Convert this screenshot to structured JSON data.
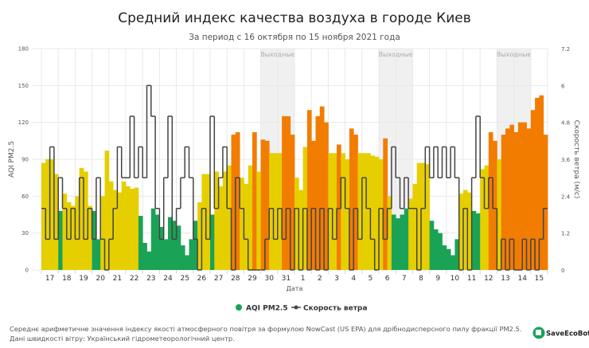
{
  "chart_data": {
    "type": "bar+line",
    "title": "Средний индекс качества воздуха в городе Киев",
    "subtitle": "За период с 16 октября по 15 ноября 2021 года",
    "xlabel": "Дата",
    "ylabel": "AQI PM2.5",
    "ylabel_right": "Скорость ветра (м/с)",
    "ylim": [
      0,
      180
    ],
    "ylim_right": [
      0,
      7.2
    ],
    "yticks": [
      "0",
      "30",
      "60",
      "90",
      "120",
      "150",
      "180"
    ],
    "yticks_right": [
      "0",
      "1.2",
      "2.4",
      "3.6",
      "4.8",
      "6",
      "7.2"
    ],
    "grid": true,
    "legend_position": "bottom",
    "x_step_hours": 6,
    "days": [
      "17",
      "18",
      "19",
      "20",
      "21",
      "22",
      "23",
      "24",
      "25",
      "26",
      "27",
      "28",
      "29",
      "30",
      "31",
      "1",
      "2",
      "3",
      "4",
      "5",
      "6",
      "7",
      "8",
      "9",
      "10",
      "11",
      "12",
      "13",
      "14",
      "15"
    ],
    "weekend_label": "Выходные",
    "weekends": [
      [
        13,
        15
      ],
      [
        20,
        22
      ],
      [
        27,
        29
      ]
    ],
    "category_colors": {
      "good": "#1aa356",
      "moderate": "#e6cf00",
      "unhealthy_sensitive": "#f27c00"
    },
    "series": [
      {
        "name": "AQI PM2.5",
        "type": "bar",
        "color": "#1aa356",
        "values": [
          87,
          90,
          90,
          78,
          48,
          62,
          55,
          52,
          60,
          83,
          80,
          52,
          48,
          25,
          60,
          97,
          72,
          65,
          63,
          72,
          68,
          66,
          67,
          44,
          22,
          15,
          50,
          45,
          35,
          25,
          43,
          40,
          36,
          20,
          12,
          25,
          40,
          55,
          78,
          78,
          45,
          80,
          68,
          80,
          85,
          110,
          112,
          75,
          70,
          85,
          112,
          80,
          106,
          105,
          95,
          95,
          95,
          125,
          125,
          110,
          75,
          65,
          100,
          130,
          105,
          125,
          133,
          120,
          95,
          95,
          102,
          95,
          90,
          115,
          110,
          95,
          95,
          95,
          93,
          92,
          90,
          107,
          60,
          45,
          42,
          45,
          50,
          58,
          70,
          87,
          87,
          86,
          40,
          33,
          30,
          20,
          17,
          12,
          25,
          62,
          65,
          63,
          48,
          46,
          82,
          85,
          112,
          105,
          90,
          110,
          115,
          118,
          112,
          120,
          120,
          115,
          130,
          140,
          142,
          110
        ]
      },
      {
        "name": "Скорость ветра",
        "type": "line",
        "color": "#444444",
        "values": [
          2,
          1,
          4,
          1,
          3,
          2,
          1,
          2,
          1,
          3,
          1,
          2,
          1,
          3,
          1,
          0,
          1,
          2,
          4,
          3,
          3,
          5,
          3,
          4,
          3,
          6,
          5,
          2,
          1,
          3,
          5,
          1,
          2,
          3,
          4,
          3,
          1,
          0,
          2,
          1,
          5,
          2,
          3,
          4,
          2,
          0,
          3,
          2,
          1,
          0,
          0,
          0,
          0,
          1,
          2,
          1,
          2,
          1,
          2,
          0,
          2,
          0,
          2,
          0,
          2,
          0,
          2,
          0,
          2,
          1,
          2,
          3,
          2,
          0,
          2,
          1,
          3,
          2,
          1,
          0,
          2,
          1,
          2,
          4,
          3,
          2,
          3,
          2,
          2,
          0,
          2,
          4,
          3,
          4,
          3,
          4,
          3,
          4,
          3,
          0,
          2,
          0,
          3,
          5,
          3,
          2,
          3,
          2,
          0,
          1,
          0,
          1,
          0,
          0,
          1,
          0,
          1,
          0,
          1,
          2
        ]
      }
    ]
  },
  "footer": {
    "line1": "Середнє арифметичне значення індексу якості атмосферного повітря за формулою NowCast (US EPA) для дрібнодисперсного пилу фракції PM2.5.",
    "line2": "Дані швидкості вітру: Український гідрометеорологічний центр."
  },
  "logo": {
    "text": "SaveEcoBot"
  }
}
